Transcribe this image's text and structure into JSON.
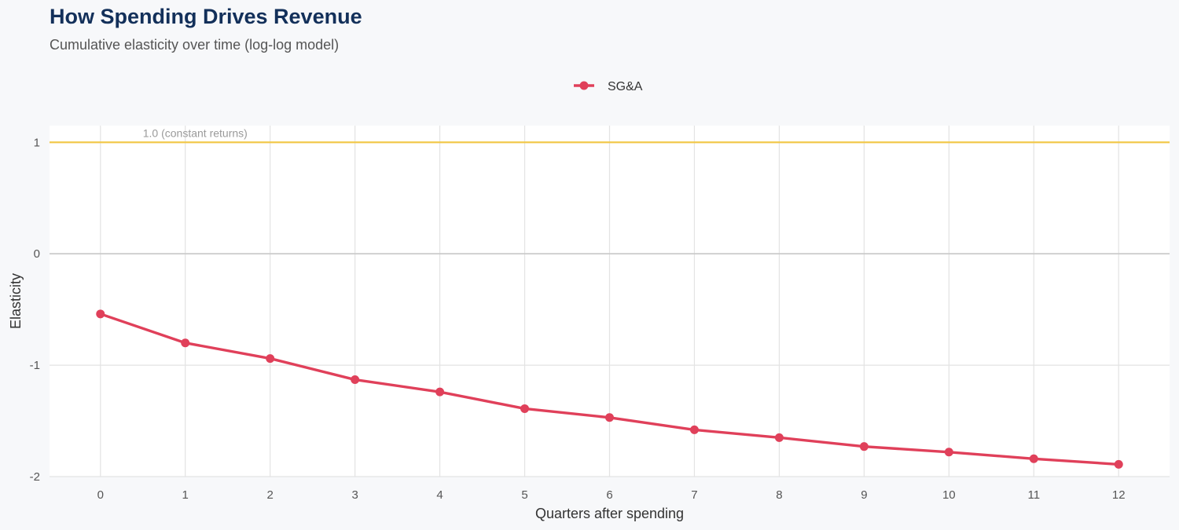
{
  "chart_data": {
    "type": "line",
    "title": "How Spending Drives Revenue",
    "subtitle": "Cumulative elasticity over time (log-log model)",
    "xlabel": "Quarters after spending",
    "ylabel": "Elasticity",
    "x": [
      0,
      1,
      2,
      3,
      4,
      5,
      6,
      7,
      8,
      9,
      10,
      11,
      12
    ],
    "series": [
      {
        "name": "SG&A",
        "color": "#e0405a",
        "values": [
          -0.54,
          -0.8,
          -0.94,
          -1.13,
          -1.24,
          -1.39,
          -1.47,
          -1.58,
          -1.65,
          -1.73,
          -1.78,
          -1.84,
          -1.89
        ]
      }
    ],
    "ylim": [
      -2.0,
      1.15
    ],
    "xlim": [
      -0.6,
      12.6
    ],
    "yticks": [
      1,
      0,
      -1,
      -2
    ],
    "ytick_labels": [
      "1",
      "0",
      "-1",
      "-2"
    ],
    "xticks": [
      0,
      1,
      2,
      3,
      4,
      5,
      6,
      7,
      8,
      9,
      10,
      11,
      12
    ],
    "xtick_labels": [
      "0",
      "1",
      "2",
      "3",
      "4",
      "5",
      "6",
      "7",
      "8",
      "9",
      "10",
      "11",
      "12"
    ],
    "reference_line": {
      "y": 1,
      "label": "1.0 (constant returns)",
      "color": "#f2c94c"
    },
    "zero_line_color": "#c8c8c8",
    "grid": true,
    "legend_position": "top-center"
  }
}
